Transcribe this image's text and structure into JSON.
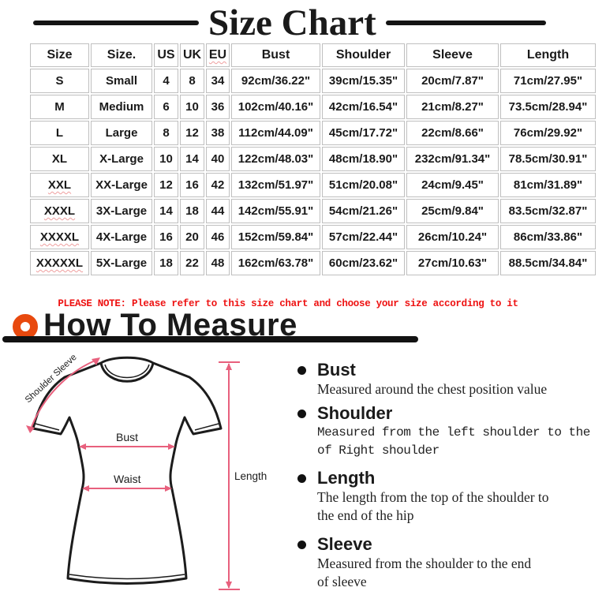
{
  "title": "Size Chart",
  "table": {
    "headers": [
      "Size",
      "Size.",
      "US",
      "UK",
      "EU",
      "Bust",
      "Shoulder",
      "Sleeve",
      "Length"
    ],
    "rows": [
      [
        "S",
        "Small",
        "4",
        "8",
        "34",
        "92cm/36.22\"",
        "39cm/15.35\"",
        "20cm/7.87\"",
        "71cm/27.95\""
      ],
      [
        "M",
        "Medium",
        "6",
        "10",
        "36",
        "102cm/40.16\"",
        "42cm/16.54\"",
        "21cm/8.27\"",
        "73.5cm/28.94\""
      ],
      [
        "L",
        "Large",
        "8",
        "12",
        "38",
        "112cm/44.09\"",
        "45cm/17.72\"",
        "22cm/8.66\"",
        "76cm/29.92\""
      ],
      [
        "XL",
        "X-Large",
        "10",
        "14",
        "40",
        "122cm/48.03\"",
        "48cm/18.90\"",
        "232cm/91.34\"",
        "78.5cm/30.91\""
      ],
      [
        "XXL",
        "XX-Large",
        "12",
        "16",
        "42",
        "132cm/51.97\"",
        "51cm/20.08\"",
        "24cm/9.45\"",
        "81cm/31.89\""
      ],
      [
        "XXXL",
        "3X-Large",
        "14",
        "18",
        "44",
        "142cm/55.91\"",
        "54cm/21.26\"",
        "25cm/9.84\"",
        "83.5cm/32.87\""
      ],
      [
        "XXXXL",
        "4X-Large",
        "16",
        "20",
        "46",
        "152cm/59.84\"",
        "57cm/22.44\"",
        "26cm/10.24\"",
        "86cm/33.86\""
      ],
      [
        "XXXXXL",
        "5X-Large",
        "18",
        "22",
        "48",
        "162cm/63.78\"",
        "60cm/23.62\"",
        "27cm/10.63\"",
        "88.5cm/34.84\""
      ]
    ],
    "misspelled": [
      "EU",
      "XXL",
      "XXXL",
      "XXXXL",
      "XXXXXL"
    ]
  },
  "note": "PLEASE NOTE: Please refer to this size chart and choose your size according to it",
  "how_to_measure": {
    "title": "How To Measure",
    "items": [
      {
        "label": "Bust",
        "desc": "Measured around the chest position value"
      },
      {
        "label": "Shoulder",
        "desc": "Measured from the left shoulder to the\nof Right shoulder"
      },
      {
        "label": "Length",
        "desc": "The length from the top of the shoulder to\nthe end of the hip"
      },
      {
        "label": "Sleeve",
        "desc": "Measured from the shoulder to the end\nof sleeve"
      }
    ]
  },
  "diagram_labels": {
    "shoulder_sleeve": "Shoulder Sleeve",
    "bust": "Bust",
    "waist": "Waist",
    "length": "Length"
  },
  "colors": {
    "note_red": "#ee1111",
    "ring_orange": "#e8490e",
    "arrow_pink": "#e8607d",
    "table_border_gray": "#bfbfbf"
  }
}
